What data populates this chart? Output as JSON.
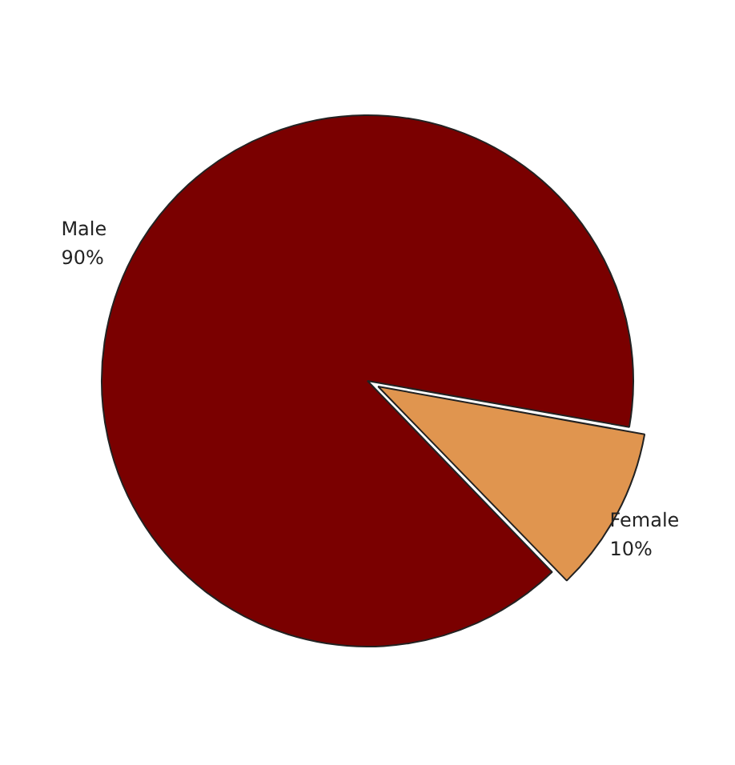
{
  "chart_data": {
    "type": "pie",
    "categories": [
      "Male",
      "Female"
    ],
    "values": [
      90,
      10
    ],
    "colors": [
      "#7a0000",
      "#e0954f"
    ],
    "value_labels": [
      "90%",
      "10%"
    ],
    "legend": false
  }
}
